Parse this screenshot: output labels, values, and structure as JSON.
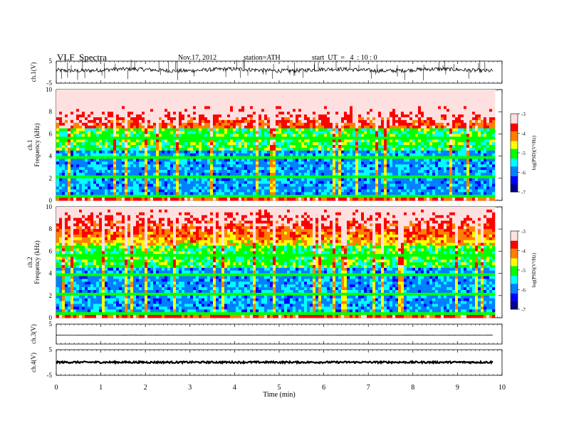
{
  "header": {
    "title": "VLF  Spectra",
    "date": "Nov.17, 2012",
    "station": "station=ATH",
    "start": "start  UT  =   4  : 10 : 0"
  },
  "chart_data": [
    {
      "type": "line",
      "panel": "ch1-waveform",
      "ylabel": "ch.1(V)",
      "ylim": [
        -5,
        5
      ],
      "yticks": [
        "5",
        "-5"
      ],
      "x_range_min": [
        0,
        9.8
      ],
      "level": 1,
      "color": "#000000"
    },
    {
      "type": "heatmap",
      "panel": "ch1-spectrogram",
      "ylabel": "ch.1\nFrequency  (kHz)",
      "ylim": [
        0,
        10
      ],
      "yticks": [
        "0",
        "2",
        "4",
        "6",
        "8",
        "10"
      ],
      "x_range_min": [
        0,
        9.8
      ],
      "colorbar": {
        "label": "log(PSD)(V²/Hz)",
        "ticks": [
          "-3",
          "-4",
          "-5",
          "-6",
          "-7"
        ],
        "range": [
          -7,
          -3
        ]
      },
      "colormap": [
        "#00008b",
        "#0000ff",
        "#0080ff",
        "#00ffff",
        "#00ff00",
        "#ffff00",
        "#ff8000",
        "#ff0000",
        "#ffe0e0"
      ]
    },
    {
      "type": "heatmap",
      "panel": "ch2-spectrogram",
      "ylabel": "ch.2\nFrequency  (kHz)",
      "ylim": [
        0,
        10
      ],
      "yticks": [
        "0",
        "2",
        "4",
        "6",
        "8",
        "10"
      ],
      "x_range_min": [
        0,
        9.8
      ],
      "colorbar": {
        "label": "log(PSD)(V²/Hz)",
        "ticks": [
          "-3",
          "-4",
          "-5",
          "-6",
          "-7"
        ],
        "range": [
          -7,
          -3
        ]
      }
    },
    {
      "type": "line",
      "panel": "ch3-waveform",
      "ylabel": "ch.3(V)",
      "ylim": [
        -5,
        5
      ],
      "yticks": [
        "5"
      ],
      "x_range_min": [
        0,
        9.8
      ],
      "level": -0.5
    },
    {
      "type": "line",
      "panel": "ch4-waveform",
      "ylabel": "ch.4(V)",
      "ylim": [
        -5,
        5
      ],
      "yticks": [
        "5",
        "-5"
      ],
      "x_range_min": [
        0,
        9.8
      ],
      "level": 0.1
    }
  ],
  "xaxis": {
    "label": "Time  (min)",
    "ticks": [
      "0",
      "1",
      "2",
      "3",
      "4",
      "5",
      "6",
      "7",
      "8",
      "9",
      "10"
    ],
    "range": [
      0,
      10
    ]
  }
}
